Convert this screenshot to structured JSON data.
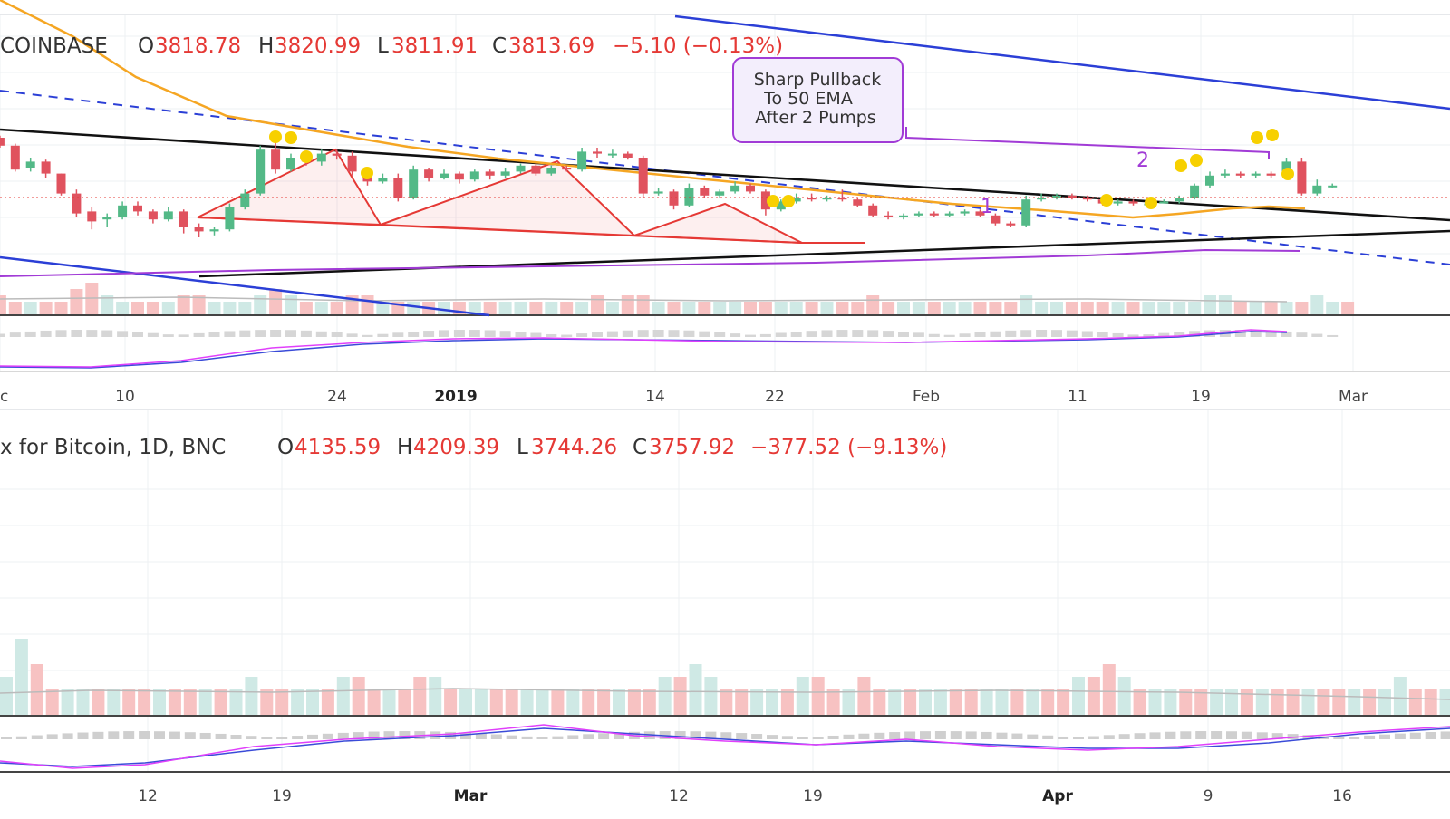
{
  "colors": {
    "up": "#26a69a",
    "up_fill": "#53b987",
    "down": "#ef5350",
    "down_fill": "#e0525e",
    "vol_up": "#cfe9e5",
    "vol_down": "#f7c2c2",
    "ema": "#f5a623",
    "trend_blue": "#2b3fd6",
    "trend_black": "#111111",
    "triangle_red": "#e53935",
    "purple": "#a13bd6",
    "marker_yellow": "#f7d000",
    "grid": "#eef0f3",
    "text_red": "#e53935",
    "text_dark": "#333333"
  },
  "top_panel": {
    "legend": {
      "symbol": "COINBASE",
      "items": [
        {
          "key": "O",
          "value": "3818.78"
        },
        {
          "key": "H",
          "value": "3820.99"
        },
        {
          "key": "L",
          "value": "3811.91"
        },
        {
          "key": "C",
          "value": "3813.69"
        }
      ],
      "change": "−5.10 (−0.13%)"
    },
    "annotation": {
      "lines": [
        "Sharp Pullback",
        "To 50 EMA",
        "After 2 Pumps"
      ]
    },
    "wave_labels": [
      "1",
      "2"
    ],
    "x_ticks": [
      {
        "label": "c",
        "bold": false
      },
      {
        "label": "10",
        "bold": false
      },
      {
        "label": "24",
        "bold": false
      },
      {
        "label": "2019",
        "bold": true
      },
      {
        "label": "14",
        "bold": false
      },
      {
        "label": "22",
        "bold": false
      },
      {
        "label": "Feb",
        "bold": false
      },
      {
        "label": "11",
        "bold": false
      },
      {
        "label": "19",
        "bold": false
      },
      {
        "label": "Mar",
        "bold": false
      }
    ]
  },
  "bottom_panel": {
    "legend": {
      "prefix": "x for Bitcoin, 1D, BNC",
      "items": [
        {
          "key": "O",
          "value": "4135.59"
        },
        {
          "key": "H",
          "value": "4209.39"
        },
        {
          "key": "L",
          "value": "3744.26"
        },
        {
          "key": "C",
          "value": "3757.92"
        }
      ],
      "change": "−377.52 (−9.13%)"
    },
    "x_ticks": [
      {
        "label": "12",
        "bold": false
      },
      {
        "label": "19",
        "bold": false
      },
      {
        "label": "Mar",
        "bold": true
      },
      {
        "label": "12",
        "bold": false
      },
      {
        "label": "19",
        "bold": false
      },
      {
        "label": "Apr",
        "bold": true
      },
      {
        "label": "9",
        "bold": false
      },
      {
        "label": "16",
        "bold": false
      }
    ]
  },
  "chart_data": {
    "type": "candlestick",
    "title": "",
    "xlabel": "",
    "ylabel": "",
    "grid": true,
    "candles_top": [
      [
        0.0,
        0.0,
        0.0,
        0.0
      ],
      [
        3.0,
        2.6,
        3.1,
        2.5
      ],
      [
        2.6,
        1.4,
        2.7,
        1.3
      ],
      [
        1.5,
        1.8,
        2.0,
        1.3
      ],
      [
        1.8,
        1.2,
        1.9,
        1.0
      ],
      [
        1.2,
        0.2,
        1.2,
        0.1
      ],
      [
        0.2,
        -0.8,
        0.4,
        -1.0
      ],
      [
        -0.7,
        -1.2,
        -0.5,
        -1.6
      ],
      [
        -1.1,
        -1.0,
        -0.8,
        -1.5
      ],
      [
        -1.0,
        -0.4,
        -0.2,
        -1.1
      ],
      [
        -0.4,
        -0.7,
        -0.2,
        -0.9
      ],
      [
        -0.7,
        -1.1,
        -0.6,
        -1.3
      ],
      [
        -1.1,
        -0.7,
        -0.5,
        -1.2
      ],
      [
        -0.7,
        -1.5,
        -0.6,
        -1.8
      ],
      [
        -1.5,
        -1.7,
        -1.3,
        -2.0
      ],
      [
        -1.7,
        -1.6,
        -1.5,
        -1.9
      ],
      [
        -1.6,
        -0.5,
        -0.3,
        -1.7
      ],
      [
        -0.5,
        0.2,
        0.4,
        -0.6
      ],
      [
        0.2,
        2.4,
        2.6,
        0.1
      ],
      [
        2.4,
        1.4,
        3.0,
        1.2
      ],
      [
        1.4,
        2.0,
        2.2,
        1.3
      ],
      [
        2.0,
        1.8,
        2.3,
        1.6
      ],
      [
        1.8,
        2.2,
        2.4,
        1.6
      ],
      [
        2.2,
        2.1,
        2.4,
        1.9
      ],
      [
        2.1,
        1.3,
        2.3,
        1.1
      ],
      [
        1.3,
        0.8,
        1.5,
        0.6
      ],
      [
        0.8,
        1.0,
        1.2,
        0.7
      ],
      [
        1.0,
        0.0,
        1.2,
        -0.2
      ],
      [
        0.0,
        1.4,
        1.6,
        -0.1
      ],
      [
        1.4,
        1.0,
        1.5,
        0.8
      ],
      [
        1.0,
        1.2,
        1.4,
        0.9
      ],
      [
        1.2,
        0.9,
        1.3,
        0.7
      ],
      [
        0.9,
        1.3,
        1.4,
        0.8
      ],
      [
        1.3,
        1.1,
        1.4,
        0.9
      ],
      [
        1.1,
        1.3,
        1.5,
        1.0
      ],
      [
        1.3,
        1.6,
        1.7,
        1.2
      ],
      [
        1.6,
        1.2,
        1.7,
        1.1
      ],
      [
        1.2,
        1.5,
        1.6,
        1.1
      ],
      [
        1.5,
        1.4,
        1.6,
        1.3
      ],
      [
        1.4,
        2.3,
        2.5,
        1.3
      ],
      [
        2.3,
        2.2,
        2.5,
        2.0
      ],
      [
        2.2,
        2.2,
        2.4,
        2.0
      ],
      [
        2.2,
        2.0,
        2.3,
        1.9
      ],
      [
        2.0,
        0.2,
        2.1,
        0.0
      ],
      [
        0.2,
        0.3,
        0.5,
        0.1
      ],
      [
        0.3,
        -0.4,
        0.4,
        -0.6
      ],
      [
        -0.4,
        0.5,
        0.7,
        -0.5
      ],
      [
        0.5,
        0.1,
        0.6,
        0.0
      ],
      [
        0.1,
        0.3,
        0.4,
        0.0
      ],
      [
        0.3,
        0.6,
        0.8,
        0.2
      ],
      [
        0.6,
        0.3,
        0.7,
        0.2
      ],
      [
        0.3,
        -0.6,
        0.4,
        -0.9
      ],
      [
        -0.6,
        -0.2,
        -0.1,
        -0.7
      ],
      [
        -0.2,
        0.0,
        0.2,
        -0.3
      ],
      [
        0.0,
        -0.1,
        0.2,
        -0.2
      ],
      [
        -0.1,
        0.0,
        0.1,
        -0.2
      ],
      [
        0.0,
        -0.1,
        0.4,
        -0.2
      ],
      [
        -0.1,
        -0.4,
        0.0,
        -0.5
      ],
      [
        -0.4,
        -0.9,
        -0.3,
        -1.0
      ],
      [
        -0.9,
        -1.0,
        -0.7,
        -1.1
      ],
      [
        -1.0,
        -0.9,
        -0.8,
        -1.1
      ],
      [
        -0.9,
        -0.8,
        -0.7,
        -1.0
      ],
      [
        -0.8,
        -0.9,
        -0.7,
        -1.0
      ],
      [
        -0.9,
        -0.8,
        -0.7,
        -1.0
      ],
      [
        -0.8,
        -0.7,
        -0.6,
        -0.9
      ],
      [
        -0.7,
        -0.9,
        -0.6,
        -1.0
      ],
      [
        -0.9,
        -1.3,
        -0.8,
        -1.4
      ],
      [
        -1.3,
        -1.4,
        -1.2,
        -1.5
      ],
      [
        -1.4,
        -0.1,
        0.1,
        -1.5
      ],
      [
        -0.1,
        0.0,
        0.2,
        -0.2
      ],
      [
        0.0,
        0.1,
        0.2,
        -0.1
      ],
      [
        0.1,
        0.0,
        0.2,
        -0.1
      ],
      [
        0.0,
        -0.1,
        0.1,
        -0.2
      ],
      [
        -0.1,
        -0.3,
        0.0,
        -0.4
      ],
      [
        -0.3,
        -0.2,
        -0.1,
        -0.4
      ],
      [
        -0.2,
        -0.3,
        -0.1,
        -0.4
      ],
      [
        -0.3,
        -0.3,
        -0.2,
        -0.4
      ],
      [
        -0.3,
        -0.2,
        -0.1,
        -0.3
      ],
      [
        -0.2,
        0.0,
        0.1,
        -0.3
      ],
      [
        0.0,
        0.6,
        0.7,
        -0.1
      ],
      [
        0.6,
        1.1,
        1.3,
        0.5
      ],
      [
        1.1,
        1.2,
        1.4,
        1.0
      ],
      [
        1.2,
        1.1,
        1.3,
        1.0
      ],
      [
        1.1,
        1.2,
        1.3,
        1.0
      ],
      [
        1.2,
        1.1,
        1.3,
        1.0
      ],
      [
        1.1,
        1.8,
        2.0,
        1.0
      ],
      [
        1.8,
        0.2,
        2.0,
        0.1
      ],
      [
        0.2,
        0.6,
        0.9,
        0.1
      ],
      [
        0.6,
        0.6,
        0.7,
        0.5
      ]
    ],
    "volume_top": [
      0,
      3,
      2,
      2,
      2,
      2,
      4,
      5,
      3,
      2,
      2,
      2,
      2,
      3,
      3,
      2,
      2,
      2,
      3,
      4,
      3,
      2,
      2,
      2,
      3,
      3,
      2,
      2,
      2,
      2,
      2,
      2,
      2,
      2,
      2,
      2,
      2,
      2,
      2,
      2,
      3,
      2,
      3,
      3,
      2,
      2,
      2,
      2,
      2,
      2,
      2,
      2,
      2,
      2,
      2,
      2,
      2,
      2,
      3,
      2,
      2,
      2,
      2,
      2,
      2,
      2,
      2,
      2,
      3,
      2,
      2,
      2,
      2,
      2,
      2,
      2,
      2,
      2,
      2,
      2,
      3,
      3,
      2,
      2,
      2,
      2,
      2,
      3,
      2,
      2
    ],
    "candles_bottom_volume": [
      3,
      6,
      4,
      2,
      2,
      2,
      2,
      2,
      2,
      2,
      2,
      2,
      2,
      2,
      2,
      2,
      3,
      2,
      2,
      2,
      2,
      2,
      3,
      3,
      2,
      2,
      2,
      3,
      3,
      2,
      2,
      2,
      2,
      2,
      2,
      2,
      2,
      2,
      2,
      2,
      2,
      2,
      2,
      3,
      3,
      4,
      3,
      2,
      2,
      2,
      2,
      2,
      3,
      3,
      2,
      2,
      3,
      2,
      2,
      2,
      2,
      2,
      2,
      2,
      2,
      2,
      2,
      2,
      2,
      2,
      3,
      3,
      4,
      3,
      2,
      2,
      2,
      2,
      2,
      2,
      2,
      2,
      2,
      2,
      2,
      2,
      2,
      2,
      2,
      2,
      2,
      3,
      2,
      2,
      2
    ]
  }
}
